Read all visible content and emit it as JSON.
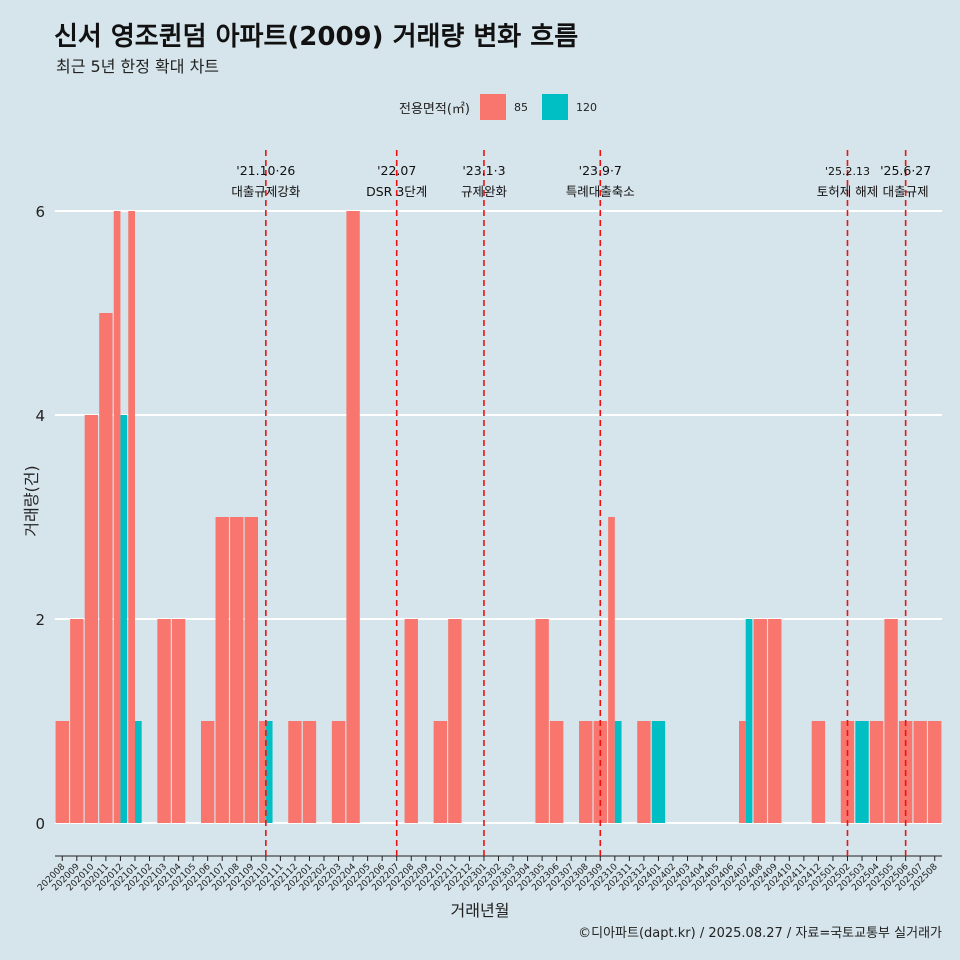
{
  "title": "신서 영조퀸덤 아파트(2009) 거래량 변화 흐름",
  "subtitle": "최근 5년 한정 확대 차트",
  "caption": "©디아파트(dapt.kr) / 2025.08.27 / 자료=국토교통부 실거래가",
  "colors": {
    "s85": "#f8766d",
    "s120": "#00bfc4",
    "vline": "#ee1111",
    "background": "#d6e4eb",
    "grid": "#ffffff"
  },
  "chart_data": {
    "type": "bar",
    "title": "신서 영조퀸덤 아파트(2009) 거래량 변화 흐름",
    "subtitle": "최근 5년 한정 확대 차트",
    "xlabel": "거래년월",
    "ylabel": "거래량(건)",
    "ylim": [
      -0.3,
      6.6
    ],
    "yticks": [
      0,
      2,
      4,
      6
    ],
    "legend_title": "전용면적(㎡)",
    "legend_position": "top",
    "grid": true,
    "categories": [
      "202008",
      "202009",
      "202010",
      "202011",
      "202012",
      "202101",
      "202102",
      "202103",
      "202104",
      "202105",
      "202106",
      "202107",
      "202108",
      "202109",
      "202110",
      "202111",
      "202112",
      "202201",
      "202202",
      "202203",
      "202204",
      "202205",
      "202206",
      "202207",
      "202208",
      "202209",
      "202210",
      "202211",
      "202212",
      "202301",
      "202302",
      "202303",
      "202304",
      "202305",
      "202306",
      "202307",
      "202308",
      "202309",
      "202310",
      "202311",
      "202312",
      "202401",
      "202402",
      "202403",
      "202404",
      "202405",
      "202406",
      "202407",
      "202408",
      "202409",
      "202410",
      "202411",
      "202412",
      "202501",
      "202502",
      "202503",
      "202504",
      "202505",
      "202506",
      "202507",
      "202508"
    ],
    "series": [
      {
        "name": "85",
        "values": [
          1,
          2,
          4,
          5,
          6,
          6,
          0,
          2,
          2,
          0,
          1,
          3,
          3,
          3,
          1,
          0,
          1,
          1,
          0,
          1,
          6,
          0,
          0,
          0,
          2,
          0,
          1,
          2,
          0,
          0,
          0,
          0,
          0,
          2,
          1,
          0,
          1,
          1,
          3,
          0,
          1,
          0,
          0,
          0,
          0,
          0,
          0,
          1,
          2,
          2,
          0,
          0,
          1,
          0,
          1,
          0,
          1,
          2,
          1,
          1,
          1
        ]
      },
      {
        "name": "120",
        "values": [
          0,
          0,
          0,
          0,
          4,
          1,
          0,
          0,
          0,
          0,
          0,
          0,
          0,
          0,
          1,
          0,
          0,
          0,
          0,
          0,
          0,
          0,
          0,
          0,
          0,
          0,
          0,
          0,
          0,
          0,
          0,
          0,
          0,
          0,
          0,
          0,
          0,
          0,
          1,
          0,
          0,
          1,
          0,
          0,
          0,
          0,
          0,
          2,
          0,
          0,
          0,
          0,
          0,
          0,
          0,
          1,
          0,
          0,
          0,
          0,
          0
        ]
      }
    ],
    "events": [
      {
        "date": "'21.10·26",
        "label": "대출규제강화",
        "at": "202110"
      },
      {
        "date": "'22.07",
        "label": "DSR 3단계",
        "at": "202207"
      },
      {
        "date": "'23.1·3",
        "label": "규제완화",
        "at": "202301"
      },
      {
        "date": "'23.9·7",
        "label": "특례대출축소",
        "at": "202309"
      },
      {
        "date": "'25.2.13",
        "label": "토허제 해제",
        "at": "202502"
      },
      {
        "date": "'25.6·27",
        "label": "대출규제",
        "at": "202506"
      }
    ]
  }
}
